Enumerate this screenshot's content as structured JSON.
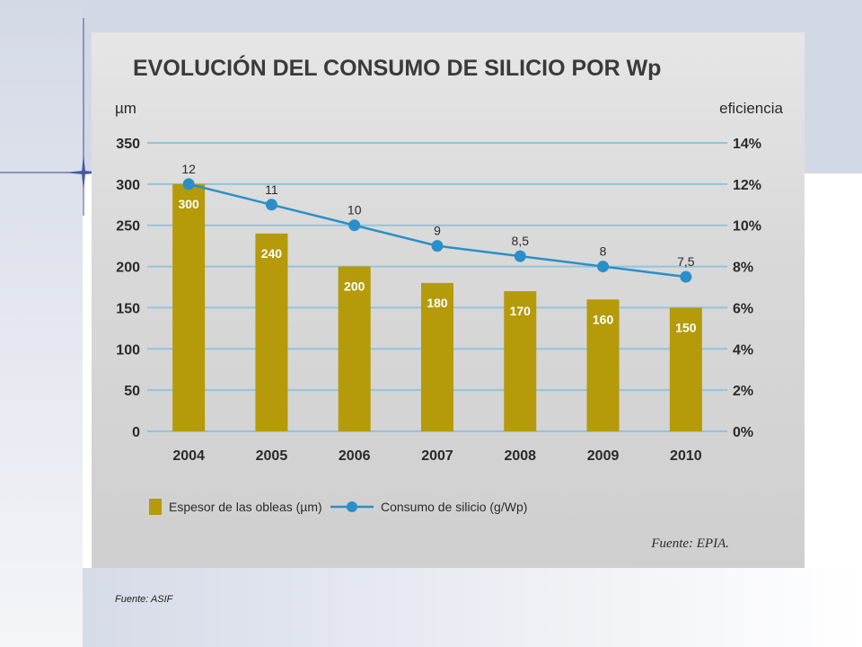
{
  "slide": {
    "footer_source": "Fuente: ASIF"
  },
  "colors": {
    "bar": "#b59a0a",
    "line": "#2a8fc8",
    "grid": "#93c3dc",
    "slide_accent": "#c9d0e0"
  },
  "chart_data": {
    "type": "bar",
    "title": "EVOLUCIÓN DEL CONSUMO DE SILICIO POR Wp",
    "ylabel": "µm",
    "y2label": "eficiencia",
    "categories": [
      "2004",
      "2005",
      "2006",
      "2007",
      "2008",
      "2009",
      "2010"
    ],
    "ylim": [
      0,
      350
    ],
    "yticks": [
      "0",
      "50",
      "100",
      "150",
      "200",
      "250",
      "300",
      "350"
    ],
    "y2lim": [
      0,
      14
    ],
    "y2ticks": [
      "0%",
      "2%",
      "4%",
      "6%",
      "8%",
      "10%",
      "12%",
      "14%"
    ],
    "grid": true,
    "legend_position": "bottom",
    "series": [
      {
        "name": "Espesor de las obleas (µm)",
        "type": "bar",
        "axis": "left",
        "values": [
          300,
          240,
          200,
          180,
          170,
          160,
          150
        ],
        "labels": [
          "300",
          "240",
          "200",
          "180",
          "170",
          "160",
          "150"
        ]
      },
      {
        "name": "Consumo de silicio (g/Wp)",
        "type": "line",
        "axis": "right",
        "values": [
          12,
          11,
          10,
          9,
          8.5,
          8,
          7.5
        ],
        "labels": [
          "12",
          "11",
          "10",
          "9",
          "8,5",
          "8",
          "7,5"
        ]
      }
    ],
    "source_note": "Fuente: EPIA."
  }
}
